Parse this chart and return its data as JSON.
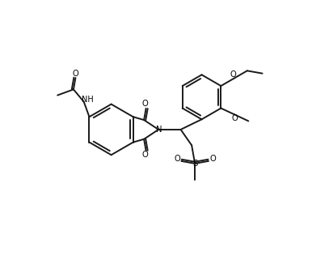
{
  "bg": "#ffffff",
  "lc": "#1a1a1a",
  "lw": 1.4,
  "figsize": [
    3.86,
    3.16
  ],
  "dpi": 100,
  "xlim": [
    0,
    10
  ],
  "ylim": [
    0,
    8.2
  ]
}
